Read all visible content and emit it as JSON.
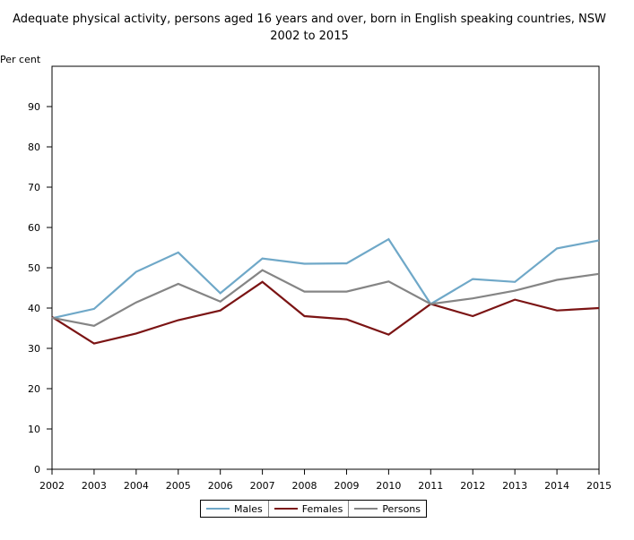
{
  "chart_data": {
    "type": "line",
    "title_line1": "Adequate physical activity, persons aged 16 years and over, born in English speaking countries, NSW",
    "title_line2": "2002 to 2015",
    "ylabel": "Per cent",
    "xlabel": "",
    "ylim": [
      0,
      100
    ],
    "yticks": [
      0,
      10,
      20,
      30,
      40,
      50,
      60,
      70,
      80,
      90
    ],
    "x": [
      "2002",
      "2003",
      "2004",
      "2005",
      "2006",
      "2007",
      "2008",
      "2009",
      "2010",
      "2011",
      "2012",
      "2013",
      "2014",
      "2015"
    ],
    "series": [
      {
        "name": "Males",
        "color": "#6fa8c8",
        "values": [
          37.5,
          39.8,
          49.0,
          53.8,
          43.7,
          52.3,
          51.0,
          51.1,
          57.1,
          41.0,
          47.2,
          46.5,
          54.8,
          56.8
        ]
      },
      {
        "name": "Females",
        "color": "#7b1414",
        "values": [
          37.8,
          31.2,
          33.7,
          37.0,
          39.4,
          46.5,
          38.0,
          37.2,
          33.4,
          41.0,
          38.0,
          42.1,
          39.4,
          40.0
        ]
      },
      {
        "name": "Persons",
        "color": "#858585",
        "values": [
          37.6,
          35.6,
          41.4,
          46.0,
          41.6,
          49.4,
          44.1,
          44.1,
          46.6,
          41.0,
          42.4,
          44.3,
          47.0,
          48.5
        ]
      }
    ],
    "grid": false,
    "legend_position": "bottom"
  }
}
